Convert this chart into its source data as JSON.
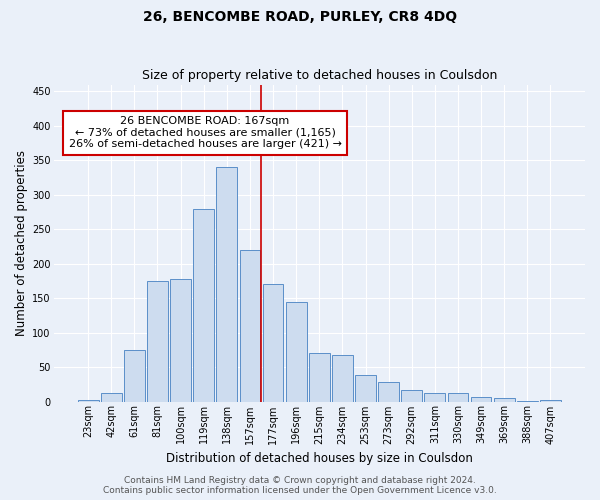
{
  "title": "26, BENCOMBE ROAD, PURLEY, CR8 4DQ",
  "subtitle": "Size of property relative to detached houses in Coulsdon",
  "xlabel": "Distribution of detached houses by size in Coulsdon",
  "ylabel": "Number of detached properties",
  "categories": [
    "23sqm",
    "42sqm",
    "61sqm",
    "81sqm",
    "100sqm",
    "119sqm",
    "138sqm",
    "157sqm",
    "177sqm",
    "196sqm",
    "215sqm",
    "234sqm",
    "253sqm",
    "273sqm",
    "292sqm",
    "311sqm",
    "330sqm",
    "349sqm",
    "369sqm",
    "388sqm",
    "407sqm"
  ],
  "bar_heights": [
    2,
    12,
    75,
    175,
    178,
    280,
    340,
    220,
    170,
    145,
    70,
    68,
    38,
    28,
    17,
    12,
    13,
    6,
    5,
    1,
    2
  ],
  "bar_color": "#cddcef",
  "bar_edge_color": "#5b8fc9",
  "background_color": "#eaf0f9",
  "grid_color": "#ffffff",
  "vline_x_index": 7.5,
  "vline_color": "#cc0000",
  "annotation_line1": "26 BENCOMBE ROAD: 167sqm",
  "annotation_line2": "← 73% of detached houses are smaller (1,165)",
  "annotation_line3": "26% of semi-detached houses are larger (421) →",
  "annotation_box_color": "#ffffff",
  "annotation_box_edge": "#cc0000",
  "footer_line1": "Contains HM Land Registry data © Crown copyright and database right 2024.",
  "footer_line2": "Contains public sector information licensed under the Open Government Licence v3.0.",
  "ylim": [
    0,
    460
  ],
  "yticks": [
    0,
    50,
    100,
    150,
    200,
    250,
    300,
    350,
    400,
    450
  ],
  "title_fontsize": 10,
  "subtitle_fontsize": 9,
  "axis_label_fontsize": 8.5,
  "tick_fontsize": 7,
  "annotation_fontsize": 8,
  "footer_fontsize": 6.5
}
